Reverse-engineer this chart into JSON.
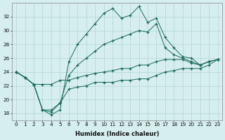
{
  "xlabel": "Humidex (Indice chaleur)",
  "bg_color": "#d6eeee",
  "line_color": "#1a6b5a",
  "grid_color": "#b8d8d8",
  "x": [
    0,
    1,
    2,
    3,
    4,
    5,
    6,
    7,
    8,
    9,
    10,
    11,
    12,
    13,
    14,
    15,
    16,
    17,
    18,
    19,
    20,
    21,
    22,
    23
  ],
  "line_max": [
    24.0,
    23.2,
    22.2,
    18.5,
    17.8,
    18.5,
    25.5,
    28.0,
    29.5,
    31.0,
    32.5,
    33.2,
    31.8,
    32.2,
    33.5,
    31.2,
    31.8,
    29.0,
    27.5,
    26.2,
    26.0,
    25.0,
    25.5,
    25.8
  ],
  "line_p75": [
    24.0,
    23.2,
    22.2,
    18.5,
    18.5,
    19.5,
    23.5,
    25.0,
    26.0,
    27.0,
    28.0,
    28.5,
    29.0,
    29.5,
    30.0,
    29.8,
    31.0,
    27.5,
    26.5,
    26.0,
    25.5,
    25.0,
    25.5,
    25.8
  ],
  "line_mean": [
    24.0,
    23.2,
    22.2,
    22.2,
    22.2,
    22.8,
    22.8,
    23.2,
    23.5,
    23.8,
    24.0,
    24.2,
    24.5,
    24.5,
    25.0,
    25.0,
    25.5,
    25.8,
    25.8,
    25.8,
    25.3,
    25.0,
    25.5,
    25.8
  ],
  "line_min": [
    24.0,
    23.2,
    22.2,
    18.5,
    18.2,
    19.5,
    21.5,
    21.8,
    22.0,
    22.5,
    22.5,
    22.5,
    22.8,
    22.8,
    23.0,
    23.0,
    23.5,
    24.0,
    24.2,
    24.5,
    24.5,
    24.5,
    25.0,
    25.8
  ],
  "ylim": [
    17,
    34
  ],
  "xlim": [
    -0.5,
    23.5
  ],
  "yticks": [
    18,
    20,
    22,
    24,
    26,
    28,
    30,
    32
  ],
  "xticks": [
    0,
    1,
    2,
    3,
    4,
    5,
    6,
    7,
    8,
    9,
    10,
    11,
    12,
    13,
    14,
    15,
    16,
    17,
    18,
    19,
    20,
    21,
    22,
    23
  ],
  "xlabel_fontsize": 6.0,
  "tick_fontsize": 5.2
}
